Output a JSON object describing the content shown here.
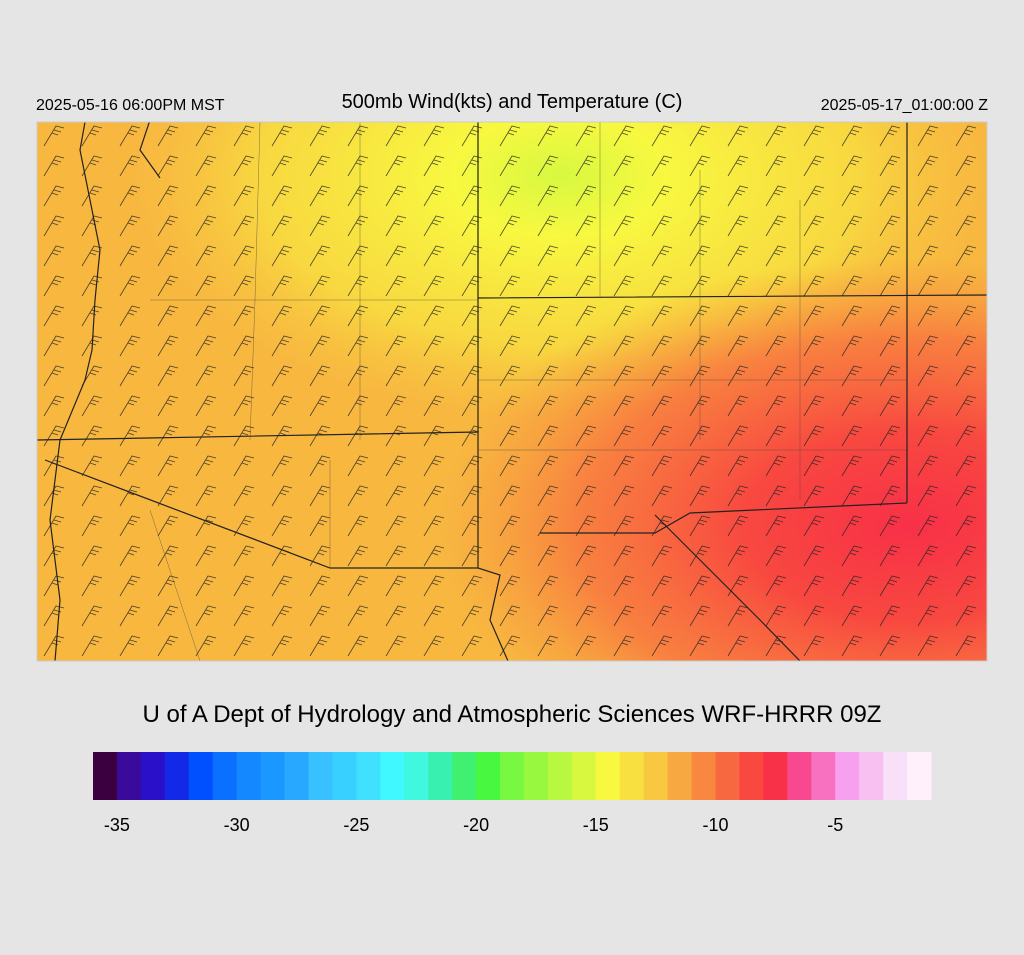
{
  "header": {
    "left": "2025-05-16 06:00PM MST",
    "title": "500mb Wind(kts) and Temperature (C)",
    "right": "2025-05-17_01:00:00 Z"
  },
  "footer": {
    "credit": "U of A Dept of Hydrology and Atmospheric Sciences WRF-HRRR 09Z"
  },
  "colorbar": {
    "range": [
      -36,
      -1
    ],
    "colors": [
      "#3a0040",
      "#3a0a9a",
      "#2a10c8",
      "#1428e8",
      "#0050ff",
      "#0a70ff",
      "#1488ff",
      "#1a98ff",
      "#28a8ff",
      "#38c0ff",
      "#38d0ff",
      "#40e0ff",
      "#40f8ff",
      "#40f8e0",
      "#38f0b0",
      "#40f070",
      "#48f840",
      "#78f840",
      "#98f840",
      "#b8f840",
      "#d8f840",
      "#f8f840",
      "#f8e040",
      "#f8c840",
      "#f8a840",
      "#f88840",
      "#f86840",
      "#f84840",
      "#f83048",
      "#f84890",
      "#f870c0",
      "#f8a0f0",
      "#f8c0f0",
      "#f8e0f8",
      "#fff0fc"
    ],
    "ticks": [
      -35,
      -30,
      -25,
      -20,
      -15,
      -10,
      -5
    ]
  }
}
